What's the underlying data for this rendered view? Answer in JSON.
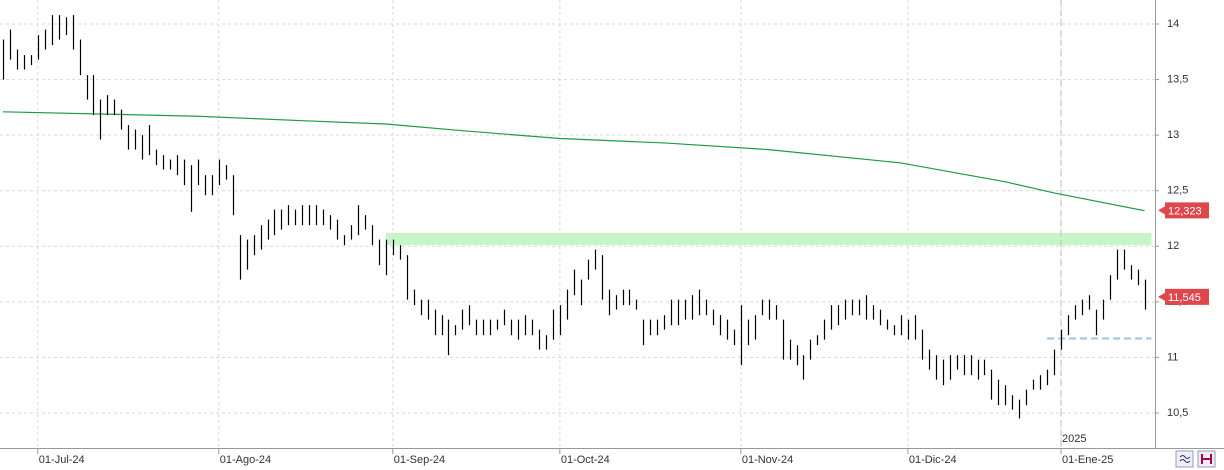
{
  "chart_data": {
    "type": "ohlc",
    "xlim": [
      -0.43,
      165.5
    ],
    "ylim": [
      10.185,
      14.216
    ],
    "grid": true,
    "bar_color": "#000000",
    "xticks": [
      {
        "value": 5,
        "label": "01-Jul-24"
      },
      {
        "value": 31,
        "label": "01-Ago-24"
      },
      {
        "value": 56,
        "label": "01-Sep-24"
      },
      {
        "value": 80,
        "label": "01-Oct-24"
      },
      {
        "value": 106,
        "label": "01-Nov-24"
      },
      {
        "value": 130,
        "label": "01-Dic-24"
      },
      {
        "value": 152,
        "label": "01-Ene-25"
      }
    ],
    "yticks": [
      {
        "value": 10.5,
        "label": "10,5"
      },
      11,
      {
        "value": 11.5,
        "label": "11,5"
      },
      12,
      {
        "value": 12.5,
        "label": "12,5"
      },
      13,
      {
        "value": 13.5,
        "label": "13,5"
      },
      14
    ],
    "high": [
      13.86,
      13.95,
      13.77,
      13.72,
      13.72,
      13.9,
      13.95,
      14.08,
      14.08,
      14.06,
      14.08,
      13.86,
      13.54,
      13.54,
      13.32,
      13.36,
      13.32,
      13.23,
      13.09,
      13.05,
      13.0,
      13.09,
      12.87,
      12.82,
      12.78,
      12.82,
      12.78,
      12.73,
      12.78,
      12.64,
      12.64,
      12.78,
      12.73,
      12.64,
      12.1,
      12.06,
      12.1,
      12.19,
      12.24,
      12.33,
      12.33,
      12.37,
      12.33,
      12.37,
      12.37,
      12.37,
      12.33,
      12.28,
      12.24,
      12.1,
      12.19,
      12.37,
      12.28,
      12.19,
      12.06,
      12.06,
      12.06,
      12.01,
      11.92,
      11.61,
      11.52,
      11.52,
      11.43,
      11.38,
      11.34,
      11.29,
      11.43,
      11.47,
      11.34,
      11.34,
      11.34,
      11.34,
      11.43,
      11.34,
      11.34,
      11.38,
      11.34,
      11.25,
      11.2,
      11.43,
      11.47,
      11.61,
      11.79,
      11.7,
      11.88,
      11.97,
      11.92,
      11.61,
      11.56,
      11.61,
      11.61,
      11.52,
      11.34,
      11.34,
      11.34,
      11.38,
      11.52,
      11.52,
      11.52,
      11.56,
      11.61,
      11.52,
      11.43,
      11.38,
      11.34,
      11.25,
      11.47,
      11.34,
      11.38,
      11.52,
      11.52,
      11.47,
      11.34,
      11.16,
      11.11,
      11.02,
      11.16,
      11.2,
      11.34,
      11.47,
      11.47,
      11.52,
      11.52,
      11.52,
      11.56,
      11.47,
      11.43,
      11.34,
      11.29,
      11.38,
      11.34,
      11.38,
      11.25,
      11.07,
      11.02,
      10.98,
      11.02,
      11.02,
      11.02,
      11.02,
      10.98,
      10.98,
      10.89,
      10.8,
      10.75,
      10.66,
      10.62,
      10.71,
      10.8,
      10.84,
      10.89,
      11.07,
      11.25,
      11.38,
      11.47,
      11.52,
      11.56,
      11.43,
      11.52,
      11.74,
      11.97,
      11.97,
      11.83,
      11.79,
      11.7
    ],
    "low": [
      13.5,
      13.68,
      13.59,
      13.59,
      13.63,
      13.68,
      13.77,
      13.81,
      13.86,
      13.9,
      13.77,
      13.54,
      13.32,
      13.18,
      12.96,
      13.18,
      13.18,
      13.05,
      12.87,
      12.87,
      12.78,
      12.82,
      12.73,
      12.69,
      12.69,
      12.64,
      12.55,
      12.31,
      12.55,
      12.46,
      12.46,
      12.55,
      12.6,
      12.28,
      11.7,
      11.79,
      11.92,
      11.97,
      12.06,
      12.1,
      12.15,
      12.19,
      12.19,
      12.19,
      12.19,
      12.19,
      12.19,
      12.15,
      12.06,
      12.01,
      12.06,
      12.1,
      12.15,
      12.01,
      11.83,
      11.74,
      11.92,
      11.88,
      11.52,
      11.47,
      11.38,
      11.34,
      11.2,
      11.2,
      11.02,
      11.2,
      11.25,
      11.29,
      11.2,
      11.2,
      11.2,
      11.25,
      11.29,
      11.2,
      11.16,
      11.2,
      11.2,
      11.07,
      11.07,
      11.16,
      11.2,
      11.34,
      11.56,
      11.47,
      11.7,
      11.79,
      11.52,
      11.38,
      11.43,
      11.47,
      11.47,
      11.43,
      11.11,
      11.2,
      11.2,
      11.25,
      11.29,
      11.29,
      11.34,
      11.34,
      11.38,
      11.38,
      11.29,
      11.2,
      11.16,
      11.11,
      10.93,
      11.11,
      11.16,
      11.38,
      11.34,
      11.34,
      10.98,
      10.98,
      10.93,
      10.8,
      10.98,
      11.11,
      11.16,
      11.25,
      11.29,
      11.34,
      11.38,
      11.38,
      11.34,
      11.34,
      11.29,
      11.25,
      11.2,
      11.2,
      11.16,
      11.16,
      10.98,
      10.89,
      10.8,
      10.75,
      10.8,
      10.89,
      10.84,
      10.84,
      10.8,
      10.84,
      10.62,
      10.57,
      10.57,
      10.53,
      10.45,
      10.57,
      10.71,
      10.71,
      10.75,
      10.84,
      11.07,
      11.2,
      11.34,
      11.38,
      11.43,
      11.2,
      11.34,
      11.52,
      11.7,
      11.79,
      11.7,
      11.65,
      11.43
    ],
    "moving_average": {
      "color": "#1f9a4a",
      "x": [
        0,
        28,
        43,
        55,
        66,
        80,
        95,
        110,
        129,
        144,
        151,
        164
      ],
      "values": [
        13.21,
        13.17,
        13.13,
        13.1,
        13.04,
        12.97,
        12.93,
        12.87,
        12.75,
        12.58,
        12.48,
        12.32
      ]
    },
    "zone": {
      "color": "#c8f5c8",
      "from": 55,
      "to": 165,
      "low": 12.01,
      "high": 12.12
    },
    "support_line": {
      "color": "#9cc3e0",
      "from": 150,
      "to": 165,
      "value": 11.17
    },
    "year_marker": {
      "value": 152,
      "label": "2025"
    },
    "price_tags": [
      {
        "value": 12.323,
        "label": "12,323",
        "color": "#e0474c"
      },
      {
        "value": 11.545,
        "label": "11,545",
        "color": "#e0474c"
      }
    ]
  }
}
